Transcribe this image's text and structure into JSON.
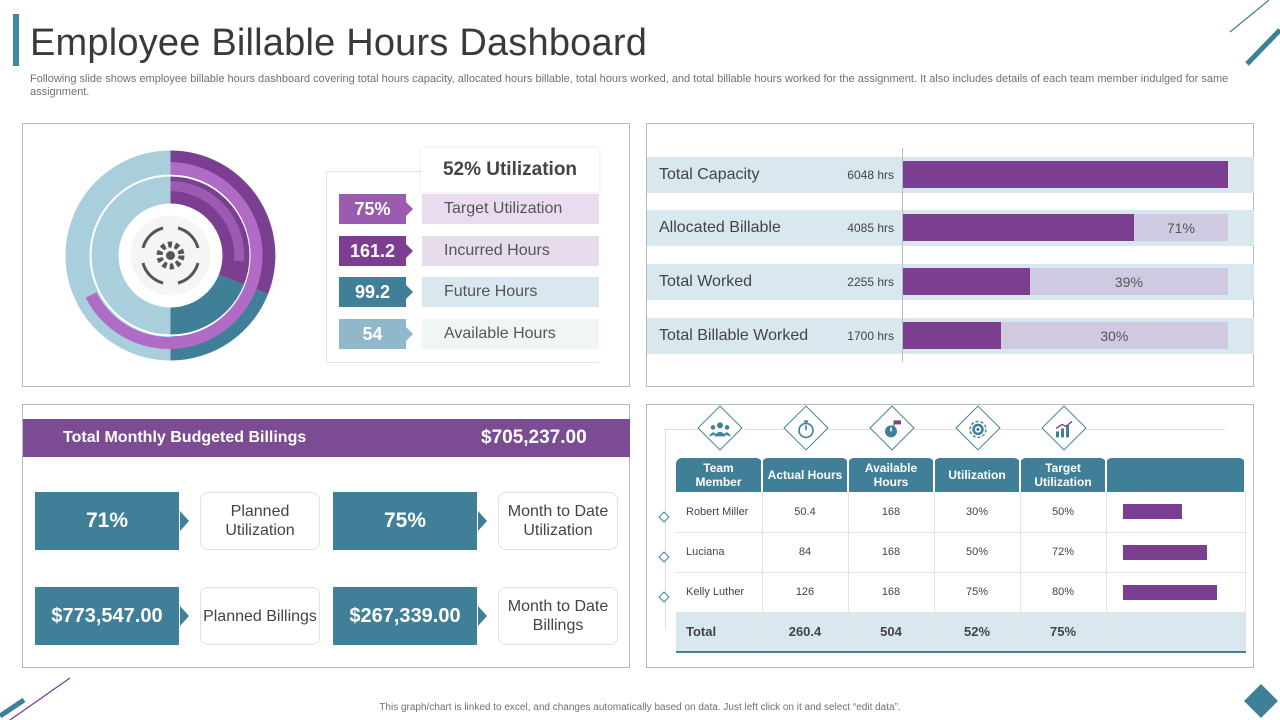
{
  "header": {
    "title": "Employee Billable Hours Dashboard",
    "subtitle": "Following slide shows employee billable hours dashboard covering total hours capacity, allocated hours billable, total hours worked, and total billable hours worked for the assignment. It also includes details of each team member indulged for same assignment."
  },
  "utilization": {
    "heading": "52% Utilization",
    "center_icon": "gear-cycle-icon",
    "metrics": [
      {
        "value": "75%",
        "label": "Target Utilization",
        "color": "#9a5bb0",
        "label_bg": "#e8dcee"
      },
      {
        "value": "161.2",
        "label": "Incurred Hours",
        "color": "#7b3e91",
        "label_bg": "#e6dcec"
      },
      {
        "value": "99.2",
        "label": "Future Hours",
        "color": "#3f7f98",
        "label_bg": "#d9e7ee"
      },
      {
        "value": "54",
        "label": "Available Hours",
        "color": "#8fb8cb",
        "label_bg": "#f0f7f3"
      }
    ],
    "ring_colors": [
      "#7b3e91",
      "#9a5bb0",
      "#3f7f98",
      "#a9cfdd"
    ]
  },
  "hours": {
    "rows": [
      {
        "label": "Total Capacity",
        "value": "6048 hrs",
        "percent": 100,
        "pct_label": ""
      },
      {
        "label": "Allocated Billable",
        "value": "4085 hrs",
        "percent": 71,
        "pct_label": "71%"
      },
      {
        "label": "Total Worked",
        "value": "2255 hrs",
        "percent": 39,
        "pct_label": "39%"
      },
      {
        "label": "Total Billable Worked",
        "value": "1700 hrs",
        "percent": 30,
        "pct_label": "30%"
      }
    ]
  },
  "billings": {
    "header_label": "Total Monthly Budgeted Billings",
    "header_value": "$705,237.00",
    "kpis": [
      {
        "value": "71%",
        "label": "Planned Utilization"
      },
      {
        "value": "75%",
        "label": "Month to Date Utilization"
      },
      {
        "value": "$773,547.00",
        "label": "Planned Billings"
      },
      {
        "value": "$267,339.00",
        "label": "Month to Date Billings"
      }
    ]
  },
  "team": {
    "header_icons": [
      "team-icon",
      "stopwatch-icon",
      "hours-flag-icon",
      "gear-target-icon",
      "growth-chart-icon"
    ],
    "columns": [
      "Team Member",
      "Actual Hours",
      "Available Hours",
      "Utilization",
      "Target Utilization",
      ""
    ],
    "rows": [
      {
        "name": "Robert Miller",
        "actual": "50.4",
        "available": "168",
        "utilization": "30%",
        "target": "50%",
        "bar": 0.5
      },
      {
        "name": "Luciana",
        "actual": "84",
        "available": "168",
        "utilization": "50%",
        "target": "72%",
        "bar": 0.72
      },
      {
        "name": "Kelly Luther",
        "actual": "126",
        "available": "168",
        "utilization": "75%",
        "target": "80%",
        "bar": 0.8
      }
    ],
    "total": {
      "label": "Total",
      "actual": "260.4",
      "available": "504",
      "utilization": "52%",
      "target": "75%"
    }
  },
  "footer": {
    "note": "This graph/chart is linked to excel, and changes automatically based on data. Just left click on it and select “edit data”."
  }
}
